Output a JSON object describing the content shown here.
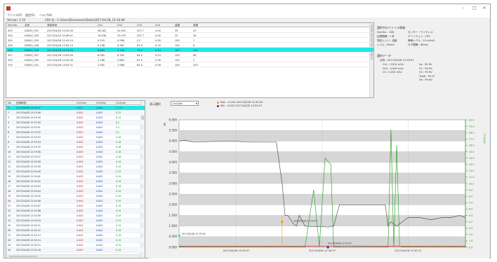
{
  "window": {
    "title": ""
  },
  "menu": [
    {
      "label": "ファイル(F)"
    },
    {
      "label": "設定(S)"
    },
    {
      "label": "ヘルプ(H)"
    }
  ],
  "info_bar": {
    "version": "Version: 1.25",
    "file": "CSV 名 : C:\\Users\\Documents\\Data\\2017-04-28_12-34-46"
  },
  "top_table": {
    "headers": [
      "Seq No.",
      "名前",
      "測定時刻",
      "Ch1",
      "Ch2",
      "Ch3",
      "Ch4",
      "温度",
      "湿度"
    ],
    "rows": [
      [
        "303",
        "D0000_303",
        "2017/04/20 15:20:49",
        "38.162",
        "50.032",
        "207.7",
        "0.00",
        "30",
        "32"
      ],
      [
        "304",
        "D0000_304",
        "2017/04/25 10:06:41",
        "18.038",
        "23.079",
        "207.7",
        "0.00",
        "35",
        "26"
      ],
      [
        "305",
        "D0000_305",
        "2017/04/26 12:45:10",
        "0.193",
        "0.998",
        "0.2",
        "0.00",
        "100",
        "7"
      ],
      [
        "306",
        "D0000_306",
        "2017/04/26 13:00:14",
        "0.198",
        "9.387",
        "93.9",
        "0.25",
        "100",
        "6"
      ],
      [
        "308",
        "D0000_308",
        "2017/04/28 12:33:00",
        "8.884",
        "5.744",
        "73.0",
        "0.24",
        "100",
        "201"
      ],
      [
        "307",
        "D0000_307",
        "2017/04/26 13:05:09",
        "8.005",
        "8.163",
        "64.0",
        "0.24",
        "100",
        "66"
      ],
      [
        "309",
        "D0000_309",
        "2017/04/26 14:00:09",
        "2.168",
        "3.884",
        "87.0",
        "0.58",
        "100",
        "2"
      ],
      [
        "310",
        "D0000_310",
        "2017/04/28 14:55:21",
        "1.992",
        "1.986",
        "64.0",
        "0.58",
        "100",
        "205"
      ]
    ]
  },
  "info_panel": {
    "title": "選択中のファイル情報",
    "lines": [
      [
        "Seq No. : 308",
        "センサー : ワイヤレス"
      ],
      [
        "記録間隔 : 1 秒",
        "ゲートウェイ : OFF"
      ],
      [
        "測定レンジ : 自動",
        "警報レベル : 10 mSv/h"
      ],
      [
        "レベル : 60mA",
        "ログ間隔 : 60min"
      ]
    ],
    "sub_title": "選択データ",
    "time": "日時 : 2017/04/28 12:33:47",
    "values": [
      [
        "Ch1 : 0.001 mSv",
        "Vo : 99.9V"
      ],
      [
        "Ch2 : 0.000 mSv",
        "V1 : 99.9V"
      ],
      [
        "Ch : 0.224 mSv",
        "V2 : 99.9V"
      ],
      [
        "",
        "Tbatt : 99.9°"
      ],
      [
        "",
        "Vb : 99.9V"
      ]
    ]
  },
  "data_table": {
    "headers": [
      "No",
      "記録時刻",
      "Ch1/Val",
      "Ch2/Val",
      "Ch3/Val"
    ],
    "rows": [
      [
        "1",
        "2017/04/28 12:33:47",
        "0.001",
        "0.000",
        "0.224"
      ],
      [
        "2",
        "2017/04/28 12:33:48",
        "0.002",
        "0.002",
        "0.24"
      ],
      [
        "3",
        "2017/04/28 12:33:49",
        "0.002",
        "0.002",
        "0.24"
      ],
      [
        "4",
        "2017/04/28 12:33:50",
        "0.003",
        "0.002",
        "0.2"
      ],
      [
        "5",
        "2017/04/28 12:33:51",
        "0.003",
        "0.002",
        "0.1"
      ],
      [
        "6",
        "2017/04/28 12:33:52",
        "0.003",
        "0.002",
        "0.1"
      ],
      [
        "7",
        "2017/04/28 12:33:53",
        "0.003",
        "0.002",
        "0.16"
      ],
      [
        "8",
        "2017/04/28 12:33:54",
        "0.003",
        "0.002",
        "0.16"
      ],
      [
        "9",
        "2017/04/28 12:33:55",
        "0.003",
        "0.002",
        "0.18"
      ],
      [
        "10",
        "2017/04/28 12:33:56",
        "0.003",
        "0.002",
        "0.18"
      ],
      [
        "11",
        "2017/04/28 12:33:57",
        "0.003",
        "0.002",
        "0.18"
      ],
      [
        "12",
        "2017/04/28 12:33:58",
        "0.003",
        "0.002",
        "0.19"
      ],
      [
        "13",
        "2017/04/28 12:33:59",
        "0.003",
        "0.002",
        "0.19"
      ],
      [
        "14",
        "2017/04/28 12:34:00",
        "0.003",
        "0.002",
        "0.19"
      ],
      [
        "15",
        "2017/04/28 12:34:01",
        "0.003",
        "0.002",
        "0.19"
      ],
      [
        "16",
        "2017/04/28 12:34:02",
        "0.003",
        "0.002",
        "0.19"
      ],
      [
        "17",
        "2017/04/28 12:34:03",
        "0.003",
        "0.002",
        "0.19"
      ],
      [
        "18",
        "2017/04/28 12:34:04",
        "0.003",
        "0.002",
        "0.19"
      ],
      [
        "19",
        "2017/04/28 12:34:05",
        "0.003",
        "0.002",
        "0.19"
      ],
      [
        "20",
        "2017/04/28 12:34:06",
        "0.003",
        "0.002",
        "0.19"
      ],
      [
        "21",
        "2017/04/28 12:34:07",
        "0.003",
        "0.002",
        "0.19"
      ],
      [
        "22",
        "2017/04/28 12:34:08",
        "0.003",
        "0.002",
        "0.19"
      ],
      [
        "23",
        "2017/04/28 12:34:09",
        "0.003",
        "0.002",
        "0.19"
      ],
      [
        "24",
        "2017/04/28 12:34:10",
        "0.003",
        "0.002",
        "0.19"
      ],
      [
        "25",
        "2017/04/28 12:34:11",
        "0.003",
        "0.002",
        "0.19"
      ],
      [
        "26",
        "2017/04/28 12:34:12",
        "0.003",
        "0.002",
        "0.19"
      ],
      [
        "27",
        "2017/04/28 12:34:13",
        "0.003",
        "0.002",
        "0.19"
      ],
      [
        "28",
        "2017/04/28 12:34:14",
        "0.003",
        "0.002",
        "0.19"
      ],
      [
        "29",
        "2017/04/28 12:34:15",
        "0.003",
        "0.002",
        "0.19"
      ],
      [
        "30",
        "2017/04/28 12:34:16",
        "0.003",
        "0.002",
        "0.19"
      ]
    ]
  },
  "chart_toolbar": {
    "label": "表示選択",
    "select_value": "Ch1/Val",
    "legend_max": "Max : 5.044  2017/04/28 12:33:52",
    "legend_min": "Min : 0.001  2017/04/28 12:33:47"
  },
  "colors": {
    "selection": "#23e6e6",
    "ch1": "#555555",
    "ch2": "#1a9a1a",
    "ch3": "#cc2020",
    "marker_orange": "#f39c12",
    "marker_purple": "#6a1b9a"
  },
  "chart_data": {
    "type": "line",
    "title": "",
    "xlabel": "",
    "ylabel": "",
    "y_left_ticks": [
      "6.000",
      "5.500",
      "5.000",
      "4.500",
      "4.000",
      "3.500",
      "3.000",
      "2.500",
      "2.000",
      "1.500",
      "1.000",
      "0.500",
      "0.000"
    ],
    "y_left_range": [
      0,
      6
    ],
    "y_right_ticks": [
      "20.0",
      "19.0",
      "18.0",
      "17.0",
      "16.0",
      "15.0",
      "14.0",
      "13.0",
      "12.0",
      "11.0",
      "10.0",
      "9.0",
      "8.0",
      "7.0",
      "6.0",
      "5.0",
      "4.0",
      "3.0",
      "2.0",
      "1.0",
      "0.0"
    ],
    "y_right_range": [
      0,
      20
    ],
    "y_right_label": "Ch3/Val",
    "x_ticks": [
      "2017/04/28 12:33:57",
      "2017/04/28 12:34:37",
      "2017/04/28 12:35:17"
    ],
    "x_range": [
      0,
      100
    ],
    "grid": true,
    "annotations": [
      {
        "text": "2017/04/28 12:34:07",
        "x": 40,
        "y": 1.2
      },
      {
        "text": "2017/04/28 12:34:37",
        "x": 52,
        "y": 0.15
      },
      {
        "text": "2017/04/28 12:33:52",
        "x": 1,
        "y": 0.6
      }
    ],
    "series": [
      {
        "x": [
          0,
          2,
          5,
          10,
          18,
          25,
          30,
          34,
          36,
          37,
          38,
          40,
          41,
          42,
          44,
          46,
          48,
          50,
          52,
          54,
          56,
          60,
          66,
          70,
          72,
          73,
          74,
          76,
          78,
          80,
          82,
          84,
          88,
          92,
          95,
          98,
          100
        ],
        "y": [
          5.0,
          5.04,
          4.95,
          4.97,
          5.0,
          4.95,
          4.95,
          4.95,
          3.0,
          1.5,
          1.5,
          1.1,
          1.0,
          1.5,
          1.0,
          0.98,
          0.98,
          0.98,
          0.95,
          1.0,
          2.0,
          2.0,
          2.0,
          2.0,
          2.0,
          1.0,
          1.2,
          1.0,
          1.2,
          1.4,
          1.4,
          1.4,
          1.3,
          1.4,
          1.4,
          1.5,
          1.4
        ]
      },
      {
        "x": [
          0,
          10,
          30,
          44,
          47,
          49,
          51,
          53,
          54,
          56,
          58,
          62,
          66,
          70,
          73,
          74,
          75,
          76,
          77,
          78,
          80,
          84,
          90,
          95,
          100
        ],
        "y": [
          0.05,
          0.05,
          0.05,
          0.05,
          9.0,
          0.1,
          14.0,
          13.0,
          0.1,
          0.05,
          0.05,
          0.05,
          0.05,
          0.05,
          0.05,
          18.5,
          0.1,
          16.0,
          0.2,
          0.05,
          0.05,
          0.05,
          0.05,
          0.05,
          0.05
        ]
      },
      {
        "x": [
          0,
          20,
          40,
          60,
          80,
          100
        ],
        "y": [
          0.05,
          0.05,
          0.05,
          0.06,
          0.05,
          0.05
        ]
      }
    ]
  }
}
